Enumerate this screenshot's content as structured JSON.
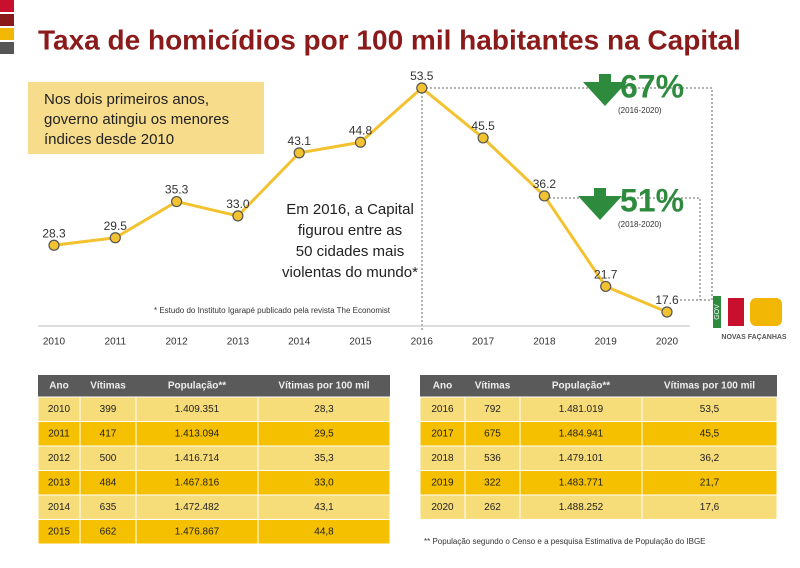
{
  "chart_data": {
    "type": "line",
    "title": "Taxa de homicídios por 100 mil habitantes na Capital",
    "categories": [
      "2010",
      "2011",
      "2012",
      "2013",
      "2014",
      "2015",
      "2016",
      "2017",
      "2018",
      "2019",
      "2020"
    ],
    "values": [
      28.3,
      29.5,
      35.3,
      33.0,
      43.1,
      44.8,
      53.5,
      45.5,
      36.2,
      21.7,
      17.6
    ],
    "value_labels": [
      "28.3",
      "29.5",
      "35.3",
      "33.0",
      "43.1",
      "44.8",
      "53.5",
      "45.5",
      "36.2",
      "21.7",
      "17.6"
    ],
    "color": "#f2c230",
    "annotation": [
      "Nos dois primeiros anos,",
      "governo atingiu os menores",
      "índices desde 2010"
    ],
    "note": [
      "Em 2016, a Capital",
      "figurou entre as",
      "50 cidades mais",
      "violentas do mundo*"
    ],
    "source": "* Estudo do Instituto Igarapé publicado pela revista The Economist",
    "callouts": [
      {
        "value": "67%",
        "period": "(2016-2020)"
      },
      {
        "value": "51%",
        "period": "(2018-2020)"
      }
    ]
  },
  "logo": {
    "gov": "GOV",
    "name": "NOVAS FAÇANHAS"
  },
  "tables": [
    {
      "header": [
        "Ano",
        "Vítimas",
        "População**",
        "Vítimas por 100 mil"
      ],
      "rows": [
        [
          "2010",
          "399",
          "1.409.351",
          "28,3"
        ],
        [
          "2011",
          "417",
          "1.413.094",
          "29,5"
        ],
        [
          "2012",
          "500",
          "1.416.714",
          "35,3"
        ],
        [
          "2013",
          "484",
          "1.467.816",
          "33,0"
        ],
        [
          "2014",
          "635",
          "1.472.482",
          "43,1"
        ],
        [
          "2015",
          "662",
          "1.476.867",
          "44,8"
        ]
      ]
    },
    {
      "header": [
        "Ano",
        "Vítimas",
        "População**",
        "Vítimas por 100 mil"
      ],
      "rows": [
        [
          "2016",
          "792",
          "1.481.019",
          "53,5"
        ],
        [
          "2017",
          "675",
          "1.484.941",
          "45,5"
        ],
        [
          "2018",
          "536",
          "1.479.101",
          "36,2"
        ],
        [
          "2019",
          "322",
          "1.483.771",
          "21,7"
        ],
        [
          "2020",
          "262",
          "1.488.252",
          "17,6"
        ]
      ]
    }
  ],
  "footnote": "** População segundo o Censo e a pesquisa Estimativa de População do IBGE"
}
